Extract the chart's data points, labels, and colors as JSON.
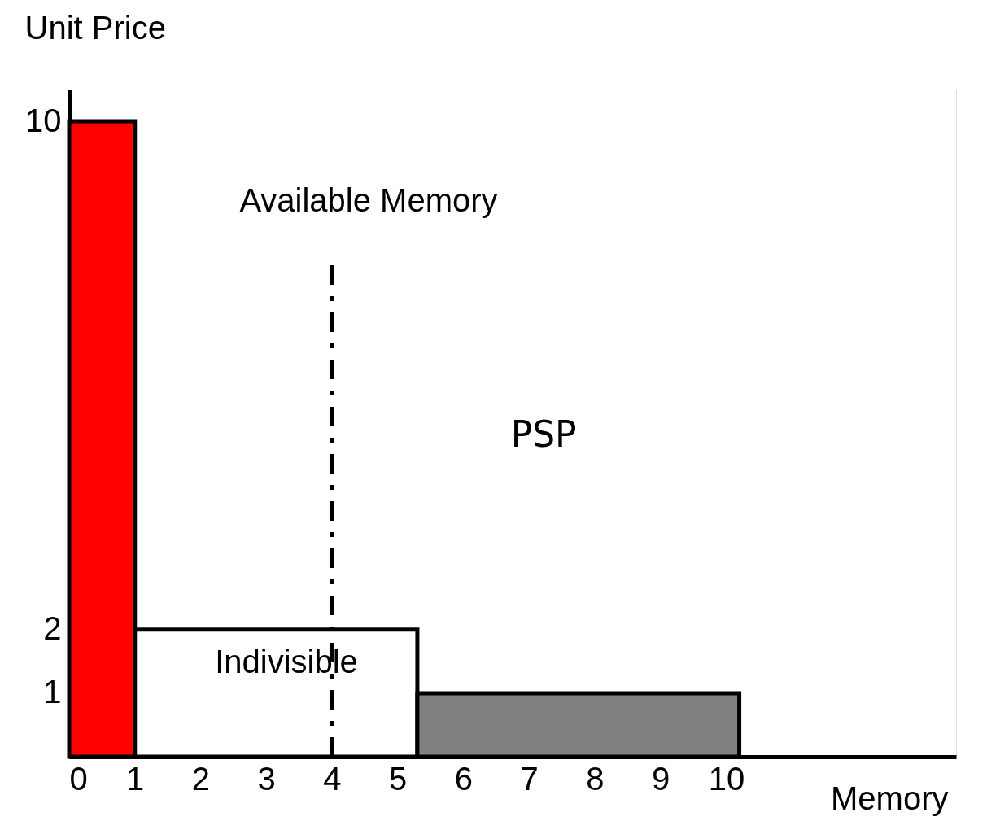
{
  "chart_data": {
    "type": "histogram",
    "bins": [
      0,
      1,
      5.3,
      10.2
    ],
    "values": [
      10,
      2,
      1
    ],
    "colors": [
      "#ff0000",
      "#ffffff",
      "#808080"
    ],
    "xlabel": "Memory",
    "ylabel": "Unit Price",
    "xlim": [
      0,
      13.5
    ],
    "ylim": [
      0,
      10.5
    ],
    "xticks": [
      0,
      1,
      2,
      3,
      4,
      5,
      6,
      7,
      8,
      9,
      10
    ],
    "yticks": [
      1,
      2,
      10
    ],
    "grid": false,
    "ref_lines": [
      {
        "axis": "x",
        "value": 4,
        "label": "Available Memory",
        "line_style": "dashed"
      }
    ],
    "annotations": [
      "Indivisible",
      "PSP"
    ]
  }
}
